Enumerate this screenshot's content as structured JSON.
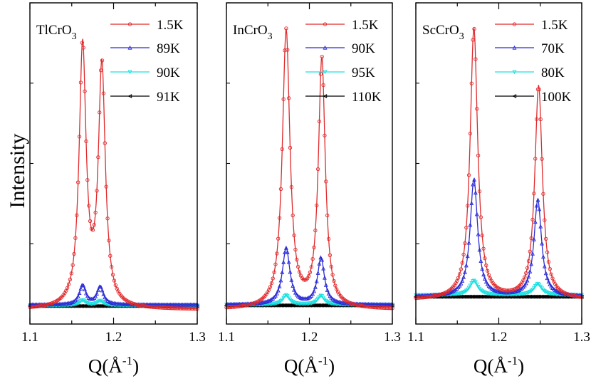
{
  "figure": {
    "ylabel": "Intensity",
    "xlabel_main": "Q(Å",
    "xlabel_sup": "-1",
    "xlabel_close": ")"
  },
  "chart_data": [
    {
      "type": "line",
      "title": "TlCrO3",
      "title_main": "TlCrO",
      "title_sub": "3",
      "xlabel": "Q(Å-1)",
      "ylabel": "Intensity",
      "xlim": [
        1.1,
        1.3
      ],
      "ylim": [
        0,
        100
      ],
      "xticks": [
        "1.1",
        "1.2",
        "1.3"
      ],
      "series": [
        {
          "name": "1.5K",
          "color": "#e0292b",
          "marker": "circle",
          "baseline": 4.5,
          "peaks": [
            {
              "center": 1.163,
              "height": 81.0,
              "width": 0.005
            },
            {
              "center": 1.186,
              "height": 74.5,
              "width": 0.005
            }
          ]
        },
        {
          "name": "89K",
          "color": "#2b2bd6",
          "marker": "triangle-up",
          "baseline": 6.0,
          "peaks": [
            {
              "center": 1.163,
              "height": 6.0,
              "width": 0.0045
            },
            {
              "center": 1.184,
              "height": 5.5,
              "width": 0.0045
            }
          ]
        },
        {
          "name": "90K",
          "color": "#19e0e0",
          "marker": "triangle-down",
          "baseline": 5.8,
          "peaks": [
            {
              "center": 1.163,
              "height": 1.6,
              "width": 0.0045
            },
            {
              "center": 1.184,
              "height": 1.4,
              "width": 0.0045
            }
          ]
        },
        {
          "name": "91K",
          "color": "#000000",
          "marker": "triangle-left",
          "baseline": 5.6,
          "peaks": []
        }
      ]
    },
    {
      "type": "line",
      "title": "InCrO3",
      "title_main": "InCrO",
      "title_sub": "3",
      "xlabel": "Q(Å-1)",
      "ylabel": "Intensity",
      "xlim": [
        1.1,
        1.3
      ],
      "ylim": [
        0,
        100
      ],
      "xticks": [
        "1.1",
        "1.2",
        "1.3"
      ],
      "series": [
        {
          "name": "1.5K",
          "color": "#e0292b",
          "marker": "circle",
          "baseline": 4.5,
          "peaks": [
            {
              "center": 1.172,
              "height": 86.5,
              "width": 0.0055
            },
            {
              "center": 1.215,
              "height": 77.5,
              "width": 0.005
            }
          ]
        },
        {
          "name": "90K",
          "color": "#2b2bd6",
          "marker": "triangle-up",
          "baseline": 6.0,
          "peaks": [
            {
              "center": 1.172,
              "height": 17.5,
              "width": 0.0055
            },
            {
              "center": 1.214,
              "height": 14.5,
              "width": 0.005
            }
          ]
        },
        {
          "name": "95K",
          "color": "#19e0e0",
          "marker": "triangle-down",
          "baseline": 6.0,
          "peaks": [
            {
              "center": 1.172,
              "height": 3.0,
              "width": 0.005
            },
            {
              "center": 1.214,
              "height": 2.8,
              "width": 0.005
            }
          ]
        },
        {
          "name": "110K",
          "color": "#000000",
          "marker": "triangle-left",
          "baseline": 5.8,
          "peaks": []
        }
      ]
    },
    {
      "type": "line",
      "title": "ScCrO3",
      "title_main": "ScCrO",
      "title_sub": "3",
      "xlabel": "Q(Å-1)",
      "ylabel": "Intensity",
      "xlim": [
        1.1,
        1.3
      ],
      "ylim": [
        0,
        100
      ],
      "xticks": [
        "1.1",
        "1.2",
        "1.3"
      ],
      "series": [
        {
          "name": "1.5K",
          "color": "#e0292b",
          "marker": "circle",
          "baseline": 7.5,
          "peaks": [
            {
              "center": 1.17,
              "height": 84.5,
              "width": 0.0055
            },
            {
              "center": 1.248,
              "height": 66.5,
              "width": 0.0055
            }
          ]
        },
        {
          "name": "70K",
          "color": "#2b2bd6",
          "marker": "triangle-up",
          "baseline": 8.5,
          "peaks": [
            {
              "center": 1.17,
              "height": 36.5,
              "width": 0.0055
            },
            {
              "center": 1.247,
              "height": 30.0,
              "width": 0.0055
            }
          ]
        },
        {
          "name": "80K",
          "color": "#19e0e0",
          "marker": "triangle-down",
          "baseline": 9.0,
          "peaks": [
            {
              "center": 1.17,
              "height": 4.5,
              "width": 0.006
            },
            {
              "center": 1.247,
              "height": 3.5,
              "width": 0.006
            }
          ]
        },
        {
          "name": "100K",
          "color": "#000000",
          "marker": "triangle-left",
          "baseline": 8.5,
          "peaks": []
        }
      ]
    }
  ]
}
